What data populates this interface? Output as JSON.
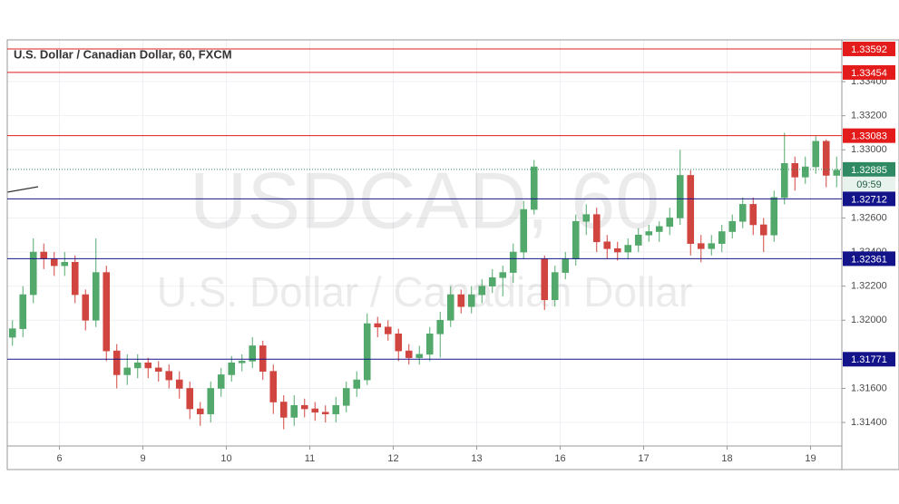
{
  "chart_data": {
    "type": "candlestick",
    "title": "U.S. Dollar / Canadian Dollar, 60, FXCM",
    "watermark": "USDCAD, 60",
    "watermark_subtitle": "U.S. Dollar / Canadian Dollar",
    "up_color": "#53a86b",
    "down_color": "#d0453f",
    "x": [
      1.5,
      4.5,
      7.5,
      10.5,
      13.5,
      16.5,
      19.5,
      22.5,
      25.5,
      28.5,
      31.5,
      34.5,
      37.5,
      40.5,
      43.5,
      46.5,
      49.5,
      52.5,
      55.5,
      58.5,
      61.5,
      64.5,
      67.5,
      70.5,
      73.5,
      76.5,
      79.5,
      82.5,
      85.5,
      88.5,
      91.5,
      94.5,
      97.5,
      100.5,
      103.5,
      106.5,
      109.5,
      112.5,
      115.5,
      118.5,
      121.5,
      124.5,
      127.5,
      130.5,
      133.5,
      136.5,
      139.5,
      142.5,
      145.5,
      148.5,
      151.5,
      154.5,
      157.5,
      160.5,
      163.5,
      166.5,
      169.5,
      172.5,
      175.5,
      178.5,
      181.5,
      184.5,
      187.5,
      190.5,
      193.5,
      196.5,
      199.5,
      202.5,
      205.5,
      208.5,
      211.5,
      214.5,
      217.5,
      220.5,
      223.5,
      226.5,
      229.5,
      232.5,
      235.5,
      238.5
    ],
    "open": [
      1.319,
      1.3195,
      1.3215,
      1.324,
      1.3236,
      1.3232,
      1.3234,
      1.3215,
      1.32,
      1.3228,
      1.3182,
      1.3168,
      1.3172,
      1.3175,
      1.3172,
      1.317,
      1.3165,
      1.316,
      1.3148,
      1.3145,
      1.316,
      1.3168,
      1.3175,
      1.3176,
      1.3185,
      1.317,
      1.3152,
      1.3143,
      1.315,
      1.3148,
      1.3146,
      1.3145,
      1.315,
      1.316,
      1.3165,
      1.3198,
      1.3196,
      1.3192,
      1.3182,
      1.3178,
      1.318,
      1.3192,
      1.32,
      1.3215,
      1.3208,
      1.3215,
      1.322,
      1.3225,
      1.3228,
      1.324,
      1.3265,
      1.3236,
      1.3212,
      1.3228,
      1.3236,
      1.3258,
      1.3262,
      1.3246,
      1.3242,
      1.324,
      1.3244,
      1.325,
      1.3252,
      1.3255,
      1.326,
      1.3285,
      1.3245,
      1.3242,
      1.3245,
      1.3252,
      1.3258,
      1.3268,
      1.3256,
      1.325,
      1.3272,
      1.3292,
      1.3284,
      1.329,
      1.3305,
      1.3285
    ],
    "high": [
      1.32,
      1.322,
      1.3248,
      1.3245,
      1.324,
      1.324,
      1.3238,
      1.3218,
      1.3248,
      1.3232,
      1.3186,
      1.318,
      1.318,
      1.3178,
      1.3176,
      1.3174,
      1.317,
      1.3164,
      1.3152,
      1.3164,
      1.3172,
      1.3179,
      1.318,
      1.319,
      1.3188,
      1.3174,
      1.3156,
      1.3156,
      1.3154,
      1.3152,
      1.315,
      1.3155,
      1.3164,
      1.317,
      1.3204,
      1.3202,
      1.32,
      1.3195,
      1.3186,
      1.3185,
      1.3196,
      1.3205,
      1.322,
      1.3218,
      1.322,
      1.3224,
      1.323,
      1.3232,
      1.3245,
      1.327,
      1.3294,
      1.3238,
      1.3232,
      1.324,
      1.3262,
      1.3268,
      1.3266,
      1.325,
      1.3246,
      1.3248,
      1.3254,
      1.3256,
      1.3258,
      1.3266,
      1.33,
      1.3288,
      1.325,
      1.325,
      1.3256,
      1.3262,
      1.3272,
      1.3272,
      1.326,
      1.3276,
      1.331,
      1.3296,
      1.3296,
      1.3308,
      1.3306,
      1.3296
    ],
    "low": [
      1.3185,
      1.319,
      1.321,
      1.323,
      1.3226,
      1.3226,
      1.321,
      1.3194,
      1.3196,
      1.3176,
      1.316,
      1.3162,
      1.3166,
      1.3166,
      1.3164,
      1.316,
      1.3154,
      1.3142,
      1.3138,
      1.314,
      1.3155,
      1.3164,
      1.317,
      1.3172,
      1.3165,
      1.3145,
      1.3136,
      1.3138,
      1.3143,
      1.3141,
      1.314,
      1.314,
      1.3146,
      1.3155,
      1.3162,
      1.319,
      1.3188,
      1.3176,
      1.3174,
      1.3174,
      1.3176,
      1.3178,
      1.3196,
      1.3204,
      1.3204,
      1.321,
      1.3216,
      1.3214,
      1.3222,
      1.3236,
      1.3262,
      1.3206,
      1.3208,
      1.3224,
      1.3232,
      1.325,
      1.324,
      1.3236,
      1.3235,
      1.3236,
      1.324,
      1.3246,
      1.3246,
      1.325,
      1.3256,
      1.3238,
      1.3234,
      1.3238,
      1.324,
      1.3248,
      1.3254,
      1.325,
      1.324,
      1.3246,
      1.3268,
      1.3276,
      1.328,
      1.3286,
      1.3278,
      1.3278
    ],
    "close": [
      1.3195,
      1.3215,
      1.324,
      1.3236,
      1.3232,
      1.3234,
      1.3215,
      1.32,
      1.3228,
      1.3182,
      1.3168,
      1.3172,
      1.3175,
      1.3172,
      1.317,
      1.3165,
      1.316,
      1.3148,
      1.3145,
      1.316,
      1.3168,
      1.3175,
      1.3176,
      1.3185,
      1.317,
      1.3152,
      1.3143,
      1.315,
      1.3148,
      1.3146,
      1.3145,
      1.315,
      1.316,
      1.3165,
      1.3198,
      1.3196,
      1.3192,
      1.3182,
      1.3178,
      1.318,
      1.3192,
      1.32,
      1.3215,
      1.3208,
      1.3215,
      1.322,
      1.3225,
      1.3228,
      1.324,
      1.3265,
      1.329,
      1.3212,
      1.3228,
      1.3236,
      1.3258,
      1.3262,
      1.3246,
      1.3242,
      1.324,
      1.3244,
      1.325,
      1.3252,
      1.3255,
      1.326,
      1.3285,
      1.3245,
      1.3242,
      1.3245,
      1.3252,
      1.3258,
      1.3268,
      1.3256,
      1.325,
      1.3272,
      1.3292,
      1.3284,
      1.329,
      1.3305,
      1.3285,
      1.3288
    ],
    "xlim": [
      0,
      240
    ],
    "xticks": [
      {
        "value": 15,
        "label": "6"
      },
      {
        "value": 39,
        "label": "9"
      },
      {
        "value": 63,
        "label": "10"
      },
      {
        "value": 87,
        "label": "11"
      },
      {
        "value": 111,
        "label": "12"
      },
      {
        "value": 135,
        "label": "13"
      },
      {
        "value": 159,
        "label": "16"
      },
      {
        "value": 183,
        "label": "17"
      },
      {
        "value": 207,
        "label": "18"
      },
      {
        "value": 231,
        "label": "19"
      }
    ],
    "ylim": [
      1.31262,
      1.33645
    ],
    "yticks": [
      {
        "value": 1.314,
        "label": "1.31400"
      },
      {
        "value": 1.316,
        "label": "1.31600"
      },
      {
        "value": 1.32,
        "label": "1.32000"
      },
      {
        "value": 1.322,
        "label": "1.32200"
      },
      {
        "value": 1.324,
        "label": "1.32400"
      },
      {
        "value": 1.326,
        "label": "1.32600"
      },
      {
        "value": 1.33,
        "label": "1.33000"
      },
      {
        "value": 1.332,
        "label": "1.33200"
      },
      {
        "value": 1.334,
        "label": "1.33400"
      }
    ],
    "grid": true,
    "levels": [
      {
        "value": 1.33592,
        "color": "#e31b1b"
      },
      {
        "value": 1.33454,
        "color": "#e31b1b"
      },
      {
        "value": 1.33083,
        "color": "#e31b1b"
      },
      {
        "value": 1.32712,
        "color": "#14148a"
      },
      {
        "value": 1.32361,
        "color": "#14148a"
      },
      {
        "value": 1.31771,
        "color": "#14148a"
      }
    ],
    "last_price": 1.32885,
    "last_price_color": "#2f8a63",
    "countdown": "09:59"
  }
}
